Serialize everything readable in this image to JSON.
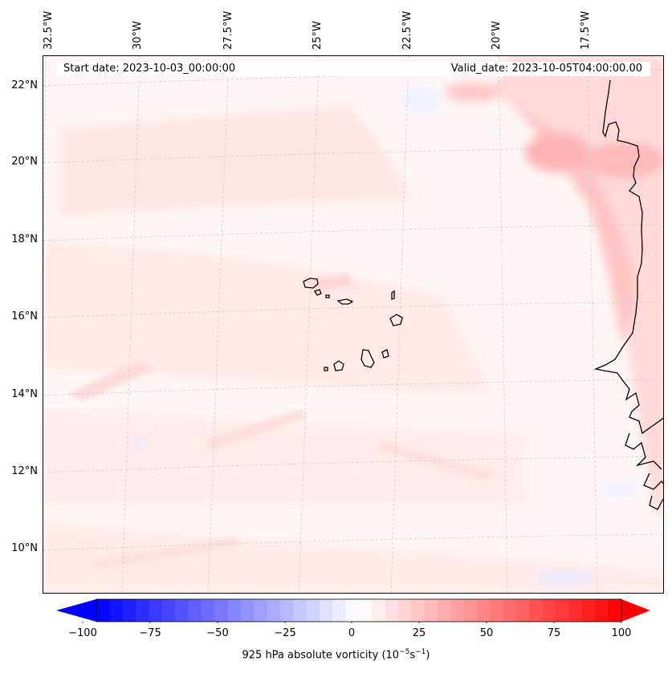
{
  "map": {
    "start_date": "Start date: 2023-10-03_00:00:00",
    "valid_date": "Valid_date: 2023-10-05T04:00:00.00",
    "lon_labels": [
      "32.5°W",
      "30°W",
      "27.5°W",
      "25°W",
      "22.5°W",
      "20°W",
      "17.5°W"
    ],
    "lat_labels": [
      "22°N",
      "20°N",
      "18°N",
      "16°N",
      "14°N",
      "12°N",
      "10°N"
    ],
    "field": "925 hPa absolute vorticity",
    "region": "Cabo Verde islands and West African coast"
  },
  "colorbar": {
    "ticks": [
      "−100",
      "−75",
      "−50",
      "−25",
      "0",
      "25",
      "50",
      "75",
      "100"
    ],
    "label_main": "925 hPa absolute vorticity (10",
    "label_exp1": "−5",
    "label_mid": "s",
    "label_exp2": "−1",
    "label_end": ")",
    "min": -100,
    "max": 100,
    "levels": 40,
    "negative_color": "#0000ff",
    "positive_color": "#ff0000"
  }
}
